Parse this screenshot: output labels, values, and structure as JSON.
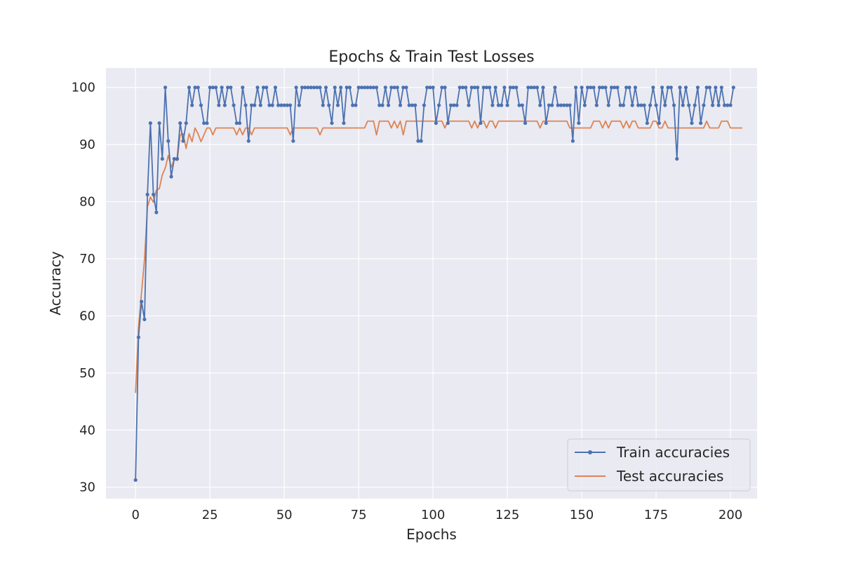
{
  "colors": {
    "plot_background": "#eaeaf2",
    "grid": "#ffffff",
    "train": "#4c72b0",
    "test": "#dd8452",
    "text": "#262626"
  },
  "chart_data": {
    "type": "line",
    "title": "Epochs & Train Test Losses",
    "xlabel": "Epochs",
    "ylabel": "Accuracy",
    "xlim": [
      -9.95,
      208.95
    ],
    "ylim": [
      28.0,
      103.4
    ],
    "xticks": [
      0,
      25,
      50,
      75,
      100,
      125,
      150,
      175,
      200
    ],
    "yticks": [
      30,
      40,
      50,
      60,
      70,
      80,
      90,
      100
    ],
    "grid": true,
    "legend": {
      "placement": "lower-right"
    },
    "series": [
      {
        "name": "Train accuracies",
        "marker": "o",
        "x_start": 0,
        "x_step": 1,
        "values": [
          31.25,
          56.25,
          62.5,
          59.38,
          81.25,
          93.75,
          81.25,
          78.12,
          93.75,
          87.5,
          100,
          90.62,
          84.38,
          87.5,
          87.5,
          93.75,
          90.62,
          93.75,
          100,
          96.88,
          100,
          100,
          96.88,
          93.75,
          93.75,
          100,
          100,
          100,
          96.88,
          100,
          96.88,
          100,
          100,
          96.88,
          93.75,
          93.75,
          100,
          96.88,
          90.62,
          96.88,
          96.88,
          100,
          96.88,
          100,
          100,
          96.88,
          96.88,
          100,
          96.88,
          96.88,
          96.88,
          96.88,
          96.88,
          90.62,
          100,
          96.88,
          100,
          100,
          100,
          100,
          100,
          100,
          100,
          96.88,
          100,
          96.88,
          93.75,
          100,
          96.88,
          100,
          93.75,
          100,
          100,
          96.88,
          96.88,
          100,
          100,
          100,
          100,
          100,
          100,
          100,
          96.88,
          96.88,
          100,
          96.88,
          100,
          100,
          100,
          96.88,
          100,
          100,
          96.88,
          96.88,
          96.88,
          90.62,
          90.62,
          96.88,
          100,
          100,
          100,
          93.75,
          96.88,
          100,
          100,
          93.75,
          96.88,
          96.88,
          96.88,
          100,
          100,
          100,
          96.88,
          100,
          100,
          100,
          93.75,
          100,
          100,
          100,
          96.88,
          100,
          96.88,
          96.88,
          100,
          96.88,
          100,
          100,
          100,
          96.88,
          96.88,
          93.75,
          100,
          100,
          100,
          100,
          96.88,
          100,
          93.75,
          96.88,
          96.88,
          100,
          96.88,
          96.88,
          96.88,
          96.88,
          96.88,
          90.62,
          100,
          93.75,
          100,
          96.88,
          100,
          100,
          100,
          96.88,
          100,
          100,
          100,
          96.88,
          100,
          100,
          100,
          96.88,
          96.88,
          100,
          100,
          96.88,
          100,
          96.88,
          96.88,
          96.88,
          93.75,
          96.88,
          100,
          96.88,
          93.75,
          100,
          96.88,
          100,
          100,
          96.88,
          87.5,
          100,
          96.88,
          100,
          96.88,
          93.75,
          96.88,
          100,
          93.75,
          96.88,
          100,
          100,
          96.88,
          100,
          96.88,
          100,
          96.88,
          96.88,
          96.88,
          100
        ]
      },
      {
        "name": "Test accuracies",
        "marker": "none",
        "x_start": 0,
        "x_step": 1,
        "values": [
          46.5,
          58.1,
          64.0,
          69.8,
          79.1,
          80.8,
          79.9,
          82.0,
          82.3,
          84.7,
          85.9,
          88.1,
          86.0,
          87.4,
          87.2,
          91.7,
          91.9,
          89.3,
          91.9,
          90.5,
          92.9,
          91.9,
          90.5,
          91.7,
          92.9,
          92.9,
          91.7,
          92.9,
          92.9,
          92.9,
          92.9,
          92.9,
          92.9,
          92.9,
          91.7,
          92.9,
          91.7,
          92.9,
          92.9,
          91.7,
          92.9,
          92.9,
          92.9,
          92.9,
          92.9,
          92.9,
          92.9,
          92.9,
          92.9,
          92.9,
          92.9,
          92.9,
          91.7,
          92.9,
          92.9,
          92.9,
          92.9,
          92.9,
          92.9,
          92.9,
          92.9,
          92.9,
          91.7,
          92.9,
          92.9,
          92.9,
          92.9,
          92.9,
          92.9,
          92.9,
          92.9,
          92.9,
          92.9,
          92.9,
          92.9,
          92.9,
          92.9,
          92.9,
          94.1,
          94.1,
          94.1,
          91.7,
          94.1,
          94.1,
          94.1,
          94.1,
          92.9,
          94.1,
          92.9,
          94.1,
          91.7,
          94.1,
          94.1,
          94.1,
          94.1,
          94.1,
          94.1,
          94.1,
          94.1,
          94.1,
          94.1,
          94.1,
          94.1,
          94.1,
          92.9,
          94.1,
          94.1,
          94.1,
          94.1,
          94.1,
          94.1,
          94.1,
          94.1,
          92.9,
          94.1,
          92.9,
          94.1,
          94.1,
          92.9,
          94.1,
          94.1,
          92.9,
          94.1,
          94.1,
          94.1,
          94.1,
          94.1,
          94.1,
          94.1,
          94.1,
          94.1,
          94.1,
          94.1,
          94.1,
          94.1,
          94.1,
          92.9,
          94.1,
          94.1,
          94.1,
          94.1,
          94.1,
          94.1,
          94.1,
          94.1,
          94.1,
          92.9,
          92.9,
          92.9,
          92.9,
          92.9,
          92.9,
          92.9,
          92.9,
          94.1,
          94.1,
          94.1,
          92.9,
          94.1,
          92.9,
          94.1,
          94.1,
          94.1,
          94.1,
          92.9,
          94.1,
          92.9,
          94.1,
          94.1,
          92.9,
          92.9,
          92.9,
          92.9,
          92.9,
          94.1,
          94.1,
          92.9,
          92.9,
          94.1,
          92.9,
          92.9,
          92.9,
          92.9,
          92.9,
          92.9,
          92.9,
          92.9,
          92.9,
          92.9,
          92.9,
          92.9,
          92.9,
          94.1,
          92.9,
          92.9,
          92.9,
          92.9,
          94.1,
          94.1,
          94.1,
          92.9,
          92.9,
          92.9,
          92.9,
          92.9
        ]
      }
    ]
  }
}
